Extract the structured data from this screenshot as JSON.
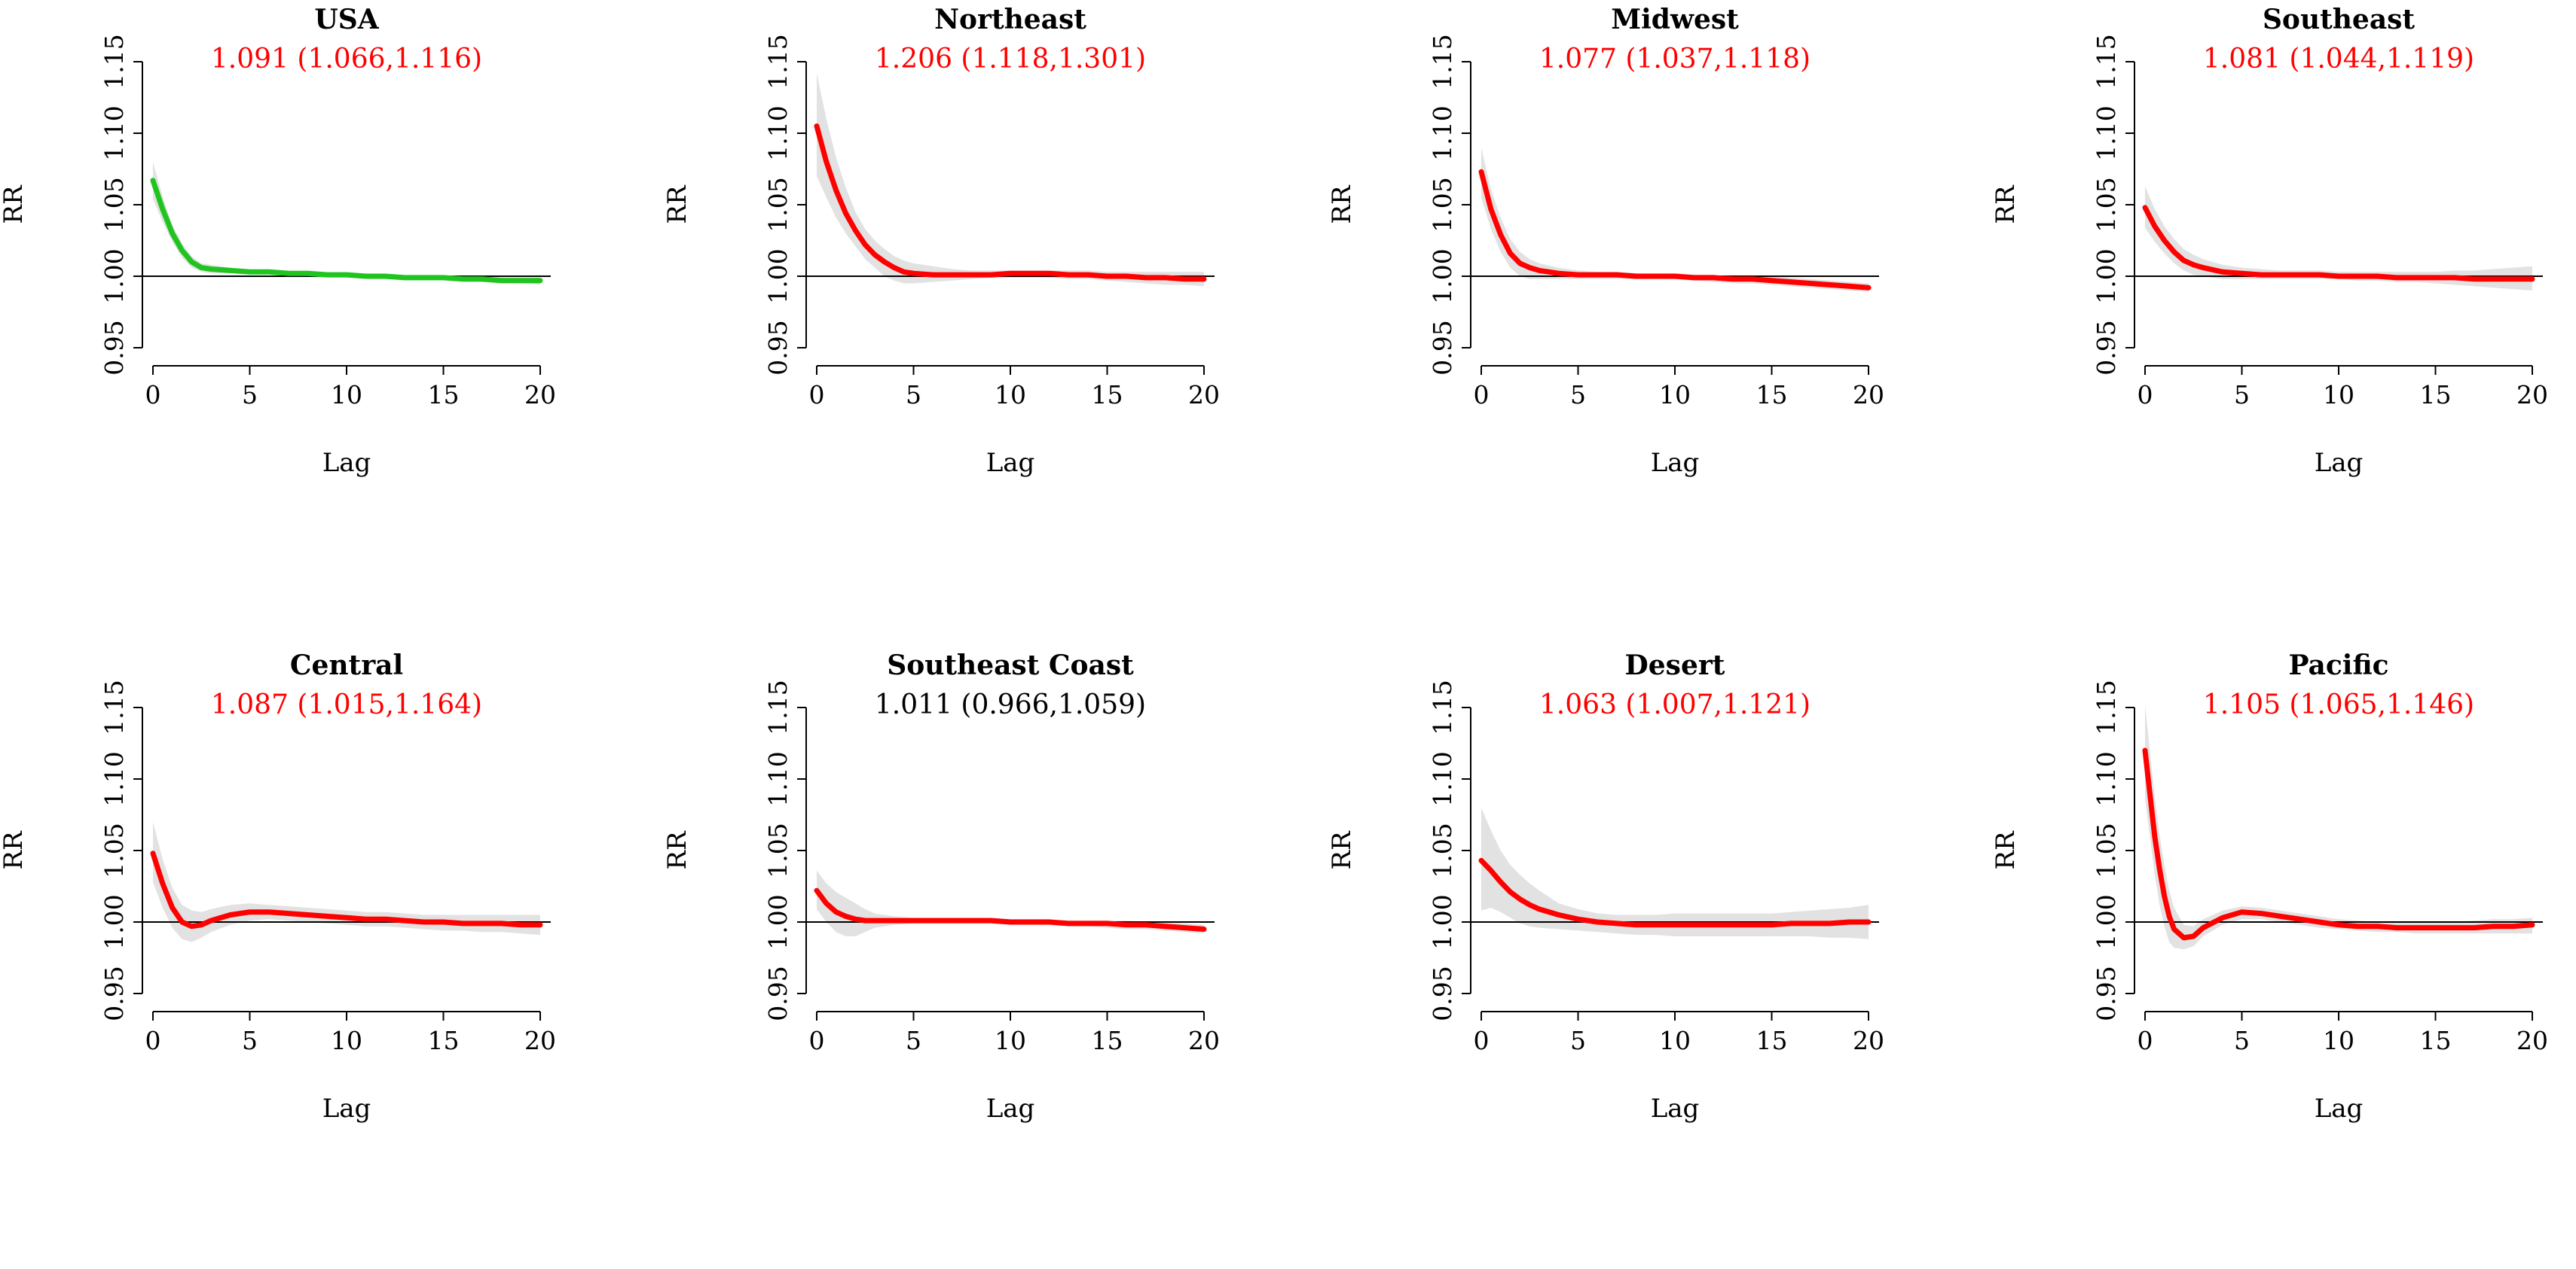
{
  "colors": {
    "significant": "#ff0000",
    "nonsignificant": "#000000",
    "national": "#1fc41f",
    "band": "#e2e2e2",
    "axis": "#000000"
  },
  "chart_data": [
    {
      "type": "line",
      "title": "USA",
      "estimate": "1.091 (1.066,1.116)",
      "estimate_significant": true,
      "curve_color": "#1fc41f",
      "xlabel": "Lag",
      "ylabel": "RR",
      "xlim": [
        0,
        20
      ],
      "ylim": [
        0.95,
        1.15
      ],
      "xticks": [
        "0",
        "5",
        "10",
        "15",
        "20"
      ],
      "yticks": [
        "0.95",
        "1.00",
        "1.05",
        "1.10",
        "1.15"
      ],
      "reference_line": 1.0,
      "x": [
        0,
        0.5,
        1,
        1.5,
        2,
        2.5,
        3,
        4,
        5,
        6,
        7,
        8,
        9,
        10,
        11,
        12,
        13,
        14,
        15,
        16,
        17,
        18,
        19,
        20
      ],
      "y": [
        1.067,
        1.047,
        1.03,
        1.018,
        1.01,
        1.006,
        1.005,
        1.004,
        1.003,
        1.003,
        1.002,
        1.002,
        1.001,
        1.001,
        1.0,
        1.0,
        0.999,
        0.999,
        0.999,
        0.998,
        0.998,
        0.997,
        0.997,
        0.997
      ],
      "lower": [
        1.054,
        1.038,
        1.024,
        1.013,
        1.006,
        1.003,
        1.002,
        1.002,
        1.002,
        1.002,
        1.001,
        1.001,
        1.0,
        1.0,
        0.999,
        0.999,
        0.998,
        0.998,
        0.998,
        0.997,
        0.996,
        0.995,
        0.995,
        0.994
      ],
      "upper": [
        1.08,
        1.056,
        1.036,
        1.023,
        1.014,
        1.009,
        1.008,
        1.006,
        1.004,
        1.004,
        1.003,
        1.003,
        1.002,
        1.002,
        1.001,
        1.001,
        1.0,
        1.0,
        1.0,
        0.999,
        0.999,
        0.999,
        0.999,
        0.999
      ]
    },
    {
      "type": "line",
      "title": "Northeast",
      "estimate": "1.206 (1.118,1.301)",
      "estimate_significant": true,
      "curve_color": "#ff0000",
      "xlabel": "Lag",
      "ylabel": "RR",
      "xlim": [
        0,
        20
      ],
      "ylim": [
        0.95,
        1.15
      ],
      "xticks": [
        "0",
        "5",
        "10",
        "15",
        "20"
      ],
      "yticks": [
        "0.95",
        "1.00",
        "1.05",
        "1.10",
        "1.15"
      ],
      "reference_line": 1.0,
      "x": [
        0,
        0.5,
        1,
        1.5,
        2,
        2.5,
        3,
        3.5,
        4,
        4.5,
        5,
        6,
        7,
        8,
        9,
        10,
        11,
        12,
        13,
        14,
        15,
        16,
        17,
        18,
        19,
        20
      ],
      "y": [
        1.105,
        1.08,
        1.06,
        1.044,
        1.032,
        1.022,
        1.015,
        1.01,
        1.006,
        1.003,
        1.002,
        1.001,
        1.001,
        1.001,
        1.001,
        1.002,
        1.002,
        1.002,
        1.001,
        1.001,
        1.0,
        1.0,
        0.999,
        0.999,
        0.998,
        0.998
      ],
      "lower": [
        1.07,
        1.055,
        1.041,
        1.03,
        1.021,
        1.012,
        1.006,
        1.0,
        0.997,
        0.995,
        0.995,
        0.996,
        0.997,
        0.998,
        0.999,
        0.999,
        0.999,
        0.999,
        0.998,
        0.998,
        0.997,
        0.996,
        0.995,
        0.994,
        0.994,
        0.993
      ],
      "upper": [
        1.142,
        1.11,
        1.083,
        1.062,
        1.045,
        1.033,
        1.025,
        1.019,
        1.014,
        1.011,
        1.009,
        1.007,
        1.005,
        1.004,
        1.004,
        1.004,
        1.004,
        1.004,
        1.004,
        1.004,
        1.003,
        1.003,
        1.003,
        1.003,
        1.003,
        1.003
      ]
    },
    {
      "type": "line",
      "title": "Midwest",
      "estimate": "1.077 (1.037,1.118)",
      "estimate_significant": true,
      "curve_color": "#ff0000",
      "xlabel": "Lag",
      "ylabel": "RR",
      "xlim": [
        0,
        20
      ],
      "ylim": [
        0.95,
        1.15
      ],
      "xticks": [
        "0",
        "5",
        "10",
        "15",
        "20"
      ],
      "yticks": [
        "0.95",
        "1.00",
        "1.05",
        "1.10",
        "1.15"
      ],
      "reference_line": 1.0,
      "x": [
        0,
        0.5,
        1,
        1.5,
        2,
        2.5,
        3,
        4,
        5,
        6,
        7,
        8,
        9,
        10,
        11,
        12,
        13,
        14,
        15,
        16,
        17,
        18,
        19,
        20
      ],
      "y": [
        1.073,
        1.047,
        1.029,
        1.016,
        1.009,
        1.006,
        1.004,
        1.002,
        1.001,
        1.001,
        1.001,
        1.0,
        1.0,
        1.0,
        0.999,
        0.999,
        0.998,
        0.998,
        0.997,
        0.996,
        0.995,
        0.994,
        0.993,
        0.992
      ],
      "lower": [
        1.055,
        1.033,
        1.017,
        1.006,
        1.0,
        0.998,
        0.998,
        0.998,
        0.998,
        0.998,
        0.998,
        0.998,
        0.998,
        0.998,
        0.997,
        0.996,
        0.995,
        0.995,
        0.994,
        0.993,
        0.992,
        0.991,
        0.99,
        0.989
      ],
      "upper": [
        1.09,
        1.061,
        1.041,
        1.026,
        1.017,
        1.012,
        1.009,
        1.006,
        1.004,
        1.003,
        1.003,
        1.002,
        1.002,
        1.002,
        1.001,
        1.001,
        1.0,
        1.0,
        1.0,
        0.999,
        0.998,
        0.997,
        0.996,
        0.995
      ]
    },
    {
      "type": "line",
      "title": "Southeast",
      "estimate": "1.081 (1.044,1.119)",
      "estimate_significant": true,
      "curve_color": "#ff0000",
      "xlabel": "Lag",
      "ylabel": "RR",
      "xlim": [
        0,
        20
      ],
      "ylim": [
        0.95,
        1.15
      ],
      "xticks": [
        "0",
        "5",
        "10",
        "15",
        "20"
      ],
      "yticks": [
        "0.95",
        "1.00",
        "1.05",
        "1.10",
        "1.15"
      ],
      "reference_line": 1.0,
      "x": [
        0,
        0.5,
        1,
        1.5,
        2,
        2.5,
        3,
        4,
        5,
        6,
        7,
        8,
        9,
        10,
        11,
        12,
        13,
        14,
        15,
        16,
        17,
        18,
        19,
        20
      ],
      "y": [
        1.048,
        1.035,
        1.025,
        1.017,
        1.011,
        1.008,
        1.006,
        1.003,
        1.002,
        1.001,
        1.001,
        1.001,
        1.001,
        1.0,
        1.0,
        1.0,
        0.999,
        0.999,
        0.999,
        0.999,
        0.998,
        0.998,
        0.998,
        0.998
      ],
      "lower": [
        1.034,
        1.024,
        1.016,
        1.009,
        1.004,
        1.001,
        1.0,
        0.998,
        0.998,
        0.998,
        0.998,
        0.998,
        0.998,
        0.998,
        0.997,
        0.997,
        0.996,
        0.996,
        0.995,
        0.994,
        0.993,
        0.992,
        0.991,
        0.99
      ],
      "upper": [
        1.063,
        1.047,
        1.035,
        1.026,
        1.019,
        1.015,
        1.012,
        1.008,
        1.006,
        1.005,
        1.004,
        1.004,
        1.004,
        1.003,
        1.003,
        1.003,
        1.003,
        1.003,
        1.003,
        1.004,
        1.004,
        1.005,
        1.006,
        1.007
      ]
    },
    {
      "type": "line",
      "title": "Central",
      "estimate": "1.087 (1.015,1.164)",
      "estimate_significant": true,
      "curve_color": "#ff0000",
      "xlabel": "Lag",
      "ylabel": "RR",
      "xlim": [
        0,
        20
      ],
      "ylim": [
        0.95,
        1.15
      ],
      "xticks": [
        "0",
        "5",
        "10",
        "15",
        "20"
      ],
      "yticks": [
        "0.95",
        "1.00",
        "1.05",
        "1.10",
        "1.15"
      ],
      "reference_line": 1.0,
      "x": [
        0,
        0.5,
        1,
        1.5,
        2,
        2.5,
        3,
        4,
        5,
        6,
        7,
        8,
        9,
        10,
        11,
        12,
        13,
        14,
        15,
        16,
        17,
        18,
        19,
        20
      ],
      "y": [
        1.048,
        1.027,
        1.01,
        1.0,
        0.997,
        0.998,
        1.001,
        1.005,
        1.007,
        1.007,
        1.006,
        1.005,
        1.004,
        1.003,
        1.002,
        1.002,
        1.001,
        1.0,
        1.0,
        0.999,
        0.999,
        0.999,
        0.998,
        0.998
      ],
      "lower": [
        1.028,
        1.01,
        0.996,
        0.988,
        0.986,
        0.989,
        0.993,
        0.998,
        1.001,
        1.002,
        1.001,
        1.0,
        0.999,
        0.998,
        0.997,
        0.997,
        0.996,
        0.995,
        0.994,
        0.994,
        0.993,
        0.993,
        0.992,
        0.991
      ],
      "upper": [
        1.07,
        1.044,
        1.024,
        1.012,
        1.008,
        1.007,
        1.009,
        1.012,
        1.013,
        1.012,
        1.011,
        1.01,
        1.009,
        1.008,
        1.007,
        1.007,
        1.006,
        1.005,
        1.005,
        1.005,
        1.005,
        1.005,
        1.005,
        1.005
      ]
    },
    {
      "type": "line",
      "title": "Southeast Coast",
      "estimate": "1.011 (0.966,1.059)",
      "estimate_significant": false,
      "curve_color": "#ff0000",
      "xlabel": "Lag",
      "ylabel": "RR",
      "xlim": [
        0,
        20
      ],
      "ylim": [
        0.95,
        1.15
      ],
      "xticks": [
        "0",
        "5",
        "10",
        "15",
        "20"
      ],
      "yticks": [
        "0.95",
        "1.00",
        "1.05",
        "1.10",
        "1.15"
      ],
      "reference_line": 1.0,
      "x": [
        0,
        0.5,
        1,
        1.5,
        2,
        2.5,
        3,
        4,
        5,
        6,
        7,
        8,
        9,
        10,
        11,
        12,
        13,
        14,
        15,
        16,
        17,
        18,
        19,
        20
      ],
      "y": [
        1.022,
        1.013,
        1.007,
        1.004,
        1.002,
        1.001,
        1.001,
        1.001,
        1.001,
        1.001,
        1.001,
        1.001,
        1.001,
        1.0,
        1.0,
        1.0,
        0.999,
        0.999,
        0.999,
        0.998,
        0.998,
        0.997,
        0.996,
        0.995
      ],
      "lower": [
        1.009,
        1.0,
        0.993,
        0.99,
        0.99,
        0.993,
        0.996,
        0.998,
        0.999,
        0.999,
        0.999,
        0.999,
        0.999,
        0.998,
        0.998,
        0.998,
        0.997,
        0.997,
        0.996,
        0.995,
        0.995,
        0.994,
        0.993,
        0.992
      ],
      "upper": [
        1.036,
        1.027,
        1.021,
        1.017,
        1.013,
        1.009,
        1.006,
        1.004,
        1.003,
        1.003,
        1.003,
        1.003,
        1.003,
        1.002,
        1.002,
        1.002,
        1.001,
        1.001,
        1.001,
        1.001,
        1.0,
        1.0,
        0.999,
        0.998
      ]
    },
    {
      "type": "line",
      "title": "Desert",
      "estimate": "1.063 (1.007,1.121)",
      "estimate_significant": true,
      "curve_color": "#ff0000",
      "xlabel": "Lag",
      "ylabel": "RR",
      "xlim": [
        0,
        20
      ],
      "ylim": [
        0.95,
        1.15
      ],
      "xticks": [
        "0",
        "5",
        "10",
        "15",
        "20"
      ],
      "yticks": [
        "0.95",
        "1.00",
        "1.05",
        "1.10",
        "1.15"
      ],
      "reference_line": 1.0,
      "x": [
        0,
        0.5,
        1,
        1.5,
        2,
        2.5,
        3,
        4,
        5,
        6,
        7,
        8,
        9,
        10,
        11,
        12,
        13,
        14,
        15,
        16,
        17,
        18,
        19,
        20
      ],
      "y": [
        1.043,
        1.036,
        1.028,
        1.021,
        1.016,
        1.012,
        1.009,
        1.005,
        1.002,
        1.0,
        0.999,
        0.998,
        0.998,
        0.998,
        0.998,
        0.998,
        0.998,
        0.998,
        0.998,
        0.999,
        0.999,
        0.999,
        1.0,
        1.0
      ],
      "lower": [
        1.008,
        1.01,
        1.007,
        1.003,
        0.999,
        0.997,
        0.996,
        0.995,
        0.994,
        0.993,
        0.992,
        0.991,
        0.991,
        0.99,
        0.99,
        0.99,
        0.99,
        0.99,
        0.99,
        0.99,
        0.99,
        0.989,
        0.989,
        0.988
      ],
      "upper": [
        1.08,
        1.064,
        1.05,
        1.04,
        1.033,
        1.027,
        1.022,
        1.013,
        1.009,
        1.006,
        1.005,
        1.005,
        1.005,
        1.006,
        1.006,
        1.006,
        1.006,
        1.006,
        1.006,
        1.007,
        1.008,
        1.009,
        1.01,
        1.012
      ]
    },
    {
      "type": "line",
      "title": "Pacific",
      "estimate": "1.105 (1.065,1.146)",
      "estimate_significant": true,
      "curve_color": "#ff0000",
      "xlabel": "Lag",
      "ylabel": "RR",
      "xlim": [
        0,
        20
      ],
      "ylim": [
        0.95,
        1.15
      ],
      "xticks": [
        "0",
        "5",
        "10",
        "15",
        "20"
      ],
      "yticks": [
        "0.95",
        "1.00",
        "1.05",
        "1.10",
        "1.15"
      ],
      "reference_line": 1.0,
      "x": [
        0,
        0.25,
        0.5,
        0.75,
        1,
        1.25,
        1.5,
        2,
        2.5,
        3,
        4,
        5,
        6,
        7,
        8,
        9,
        10,
        11,
        12,
        13,
        14,
        15,
        16,
        17,
        18,
        19,
        20
      ],
      "y": [
        1.12,
        1.09,
        1.06,
        1.037,
        1.018,
        1.004,
        0.995,
        0.989,
        0.99,
        0.996,
        1.003,
        1.007,
        1.006,
        1.004,
        1.002,
        1.0,
        0.998,
        0.997,
        0.997,
        0.996,
        0.996,
        0.996,
        0.996,
        0.996,
        0.997,
        0.997,
        0.998
      ],
      "lower": [
        1.086,
        1.06,
        1.033,
        1.012,
        0.997,
        0.986,
        0.982,
        0.981,
        0.983,
        0.99,
        0.998,
        1.002,
        1.002,
        1.0,
        0.998,
        0.996,
        0.995,
        0.994,
        0.993,
        0.993,
        0.992,
        0.992,
        0.992,
        0.992,
        0.992,
        0.992,
        0.992
      ],
      "upper": [
        1.152,
        1.12,
        1.088,
        1.061,
        1.04,
        1.022,
        1.01,
        0.998,
        0.997,
        1.002,
        1.008,
        1.011,
        1.01,
        1.008,
        1.006,
        1.004,
        1.002,
        1.001,
        1.0,
        1.0,
        1.0,
        1.0,
        1.0,
        1.001,
        1.002,
        1.002,
        1.003
      ]
    }
  ]
}
